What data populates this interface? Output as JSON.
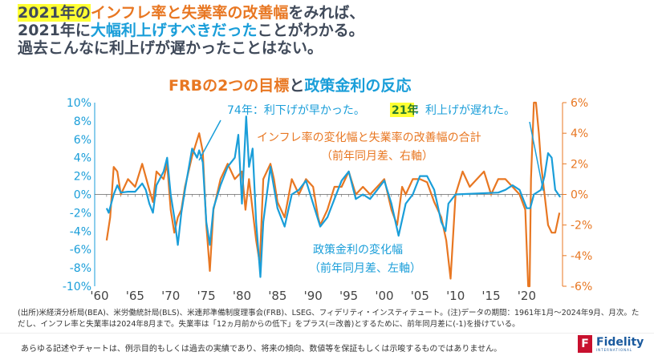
{
  "headline": {
    "l1_a": "2021年の",
    "l1_b": "インフレ率と失業率の改善幅",
    "l1_c": "をみれば、",
    "l2_a": "2021年に",
    "l2_b": "大幅利上げすべきだった",
    "l2_c": "ことがわかる。",
    "l3": "過去こんなに利上げが遅かったことはない。"
  },
  "chart_data": {
    "type": "line",
    "title_a": "FRBの2つの目標",
    "title_b": "と",
    "title_c": "政策金利の反応",
    "x_ticks": [
      "'60",
      "'65",
      "'70",
      "'75",
      "'80",
      "'85",
      "'90",
      "'95",
      "'00",
      "'05",
      "'10",
      "'15",
      "'20"
    ],
    "x_tick_years": [
      1960,
      1965,
      1970,
      1975,
      1980,
      1985,
      1990,
      1995,
      2000,
      2005,
      2010,
      2015,
      2020
    ],
    "xlim": [
      1960,
      2024.8
    ],
    "left_axis": {
      "ylim": [
        -10,
        10
      ],
      "ticks": [
        "10%",
        "8%",
        "6%",
        "4%",
        "2%",
        "0%",
        "-2%",
        "-4%",
        "-6%",
        "-8%",
        "-10%"
      ],
      "color": "#1a9ed9"
    },
    "right_axis": {
      "ylim": [
        -6,
        6
      ],
      "ticks": [
        "6%",
        "4%",
        "2%",
        "0%",
        "-2%",
        "-4%",
        "-6%"
      ],
      "color": "#e87722"
    },
    "annotations": {
      "a74": "74年：利下げが早かった。",
      "a21_y": "21年",
      "a21_t": "：利上げが遅れた。",
      "orange_l1": "インフレ率の変化幅と失業率の改善幅の合計",
      "orange_l2": "（前年同月差、右軸）",
      "blue_l1": "政策金利の変化幅",
      "blue_l2": "（前年同月差、左軸）"
    },
    "series": [
      {
        "name": "政策金利の変化幅（前年同月差、左軸）",
        "axis": "left",
        "color": "#1a9ed9",
        "points": [
          [
            1961,
            -1.5
          ],
          [
            1961.3,
            -2
          ],
          [
            1962,
            0
          ],
          [
            1962.5,
            1
          ],
          [
            1963,
            0.2
          ],
          [
            1964,
            0.3
          ],
          [
            1965,
            0.3
          ],
          [
            1966,
            1.2
          ],
          [
            1966.5,
            0.5
          ],
          [
            1967,
            -1
          ],
          [
            1967.5,
            -2
          ],
          [
            1968,
            1
          ],
          [
            1969,
            2.5
          ],
          [
            1969.5,
            4
          ],
          [
            1970,
            0
          ],
          [
            1970.5,
            -2.5
          ],
          [
            1971,
            -5.5
          ],
          [
            1971.5,
            -2
          ],
          [
            1972,
            0.5
          ],
          [
            1973,
            5
          ],
          [
            1973.7,
            4
          ],
          [
            1974,
            4.8
          ],
          [
            1974.5,
            3.5
          ],
          [
            1975,
            -3
          ],
          [
            1975.5,
            -5.5
          ],
          [
            1976,
            -1.5
          ],
          [
            1977,
            1
          ],
          [
            1978,
            3
          ],
          [
            1979,
            4
          ],
          [
            1979.5,
            6.5
          ],
          [
            1980,
            -1
          ],
          [
            1980.6,
            8.5
          ],
          [
            1981,
            3
          ],
          [
            1981.5,
            5
          ],
          [
            1982,
            -3
          ],
          [
            1982.6,
            -9
          ],
          [
            1983,
            -3
          ],
          [
            1984,
            3
          ],
          [
            1985,
            -1.5
          ],
          [
            1986,
            -3.5
          ],
          [
            1987,
            0
          ],
          [
            1988,
            0.5
          ],
          [
            1989,
            1.5
          ],
          [
            1990,
            -1
          ],
          [
            1991,
            -3.5
          ],
          [
            1992,
            -2.5
          ],
          [
            1993,
            -0.5
          ],
          [
            1994,
            1.5
          ],
          [
            1995,
            2.5
          ],
          [
            1996,
            -0.5
          ],
          [
            1997,
            0
          ],
          [
            1998,
            -0.5
          ],
          [
            1999,
            0.5
          ],
          [
            2000,
            1.5
          ],
          [
            2001,
            -1
          ],
          [
            2002,
            -4.5
          ],
          [
            2003,
            -1
          ],
          [
            2004,
            0
          ],
          [
            2005,
            2
          ],
          [
            2006,
            2
          ],
          [
            2007,
            0.5
          ],
          [
            2008,
            -3
          ],
          [
            2008.6,
            -4
          ],
          [
            2009,
            -1
          ],
          [
            2010,
            0
          ],
          [
            2016,
            0.2
          ],
          [
            2017,
            0.5
          ],
          [
            2018,
            1
          ],
          [
            2019,
            0.5
          ],
          [
            2020,
            -1.5
          ],
          [
            2020.5,
            -1.5
          ],
          [
            2021,
            0
          ],
          [
            2022,
            0.5
          ],
          [
            2022.5,
            2
          ],
          [
            2023,
            4.5
          ],
          [
            2023.5,
            4
          ],
          [
            2024,
            0.5
          ],
          [
            2024.7,
            -0.3
          ]
        ]
      },
      {
        "name": "インフレ率の変化幅と失業率の改善幅の合計（前年同月差、右軸）",
        "axis": "right",
        "color": "#e87722",
        "points": [
          [
            1961,
            -3
          ],
          [
            1961.5,
            -1.5
          ],
          [
            1962,
            1.8
          ],
          [
            1962.5,
            1.5
          ],
          [
            1963,
            0
          ],
          [
            1964,
            1
          ],
          [
            1965,
            0.5
          ],
          [
            1966,
            2
          ],
          [
            1967,
            0.3
          ],
          [
            1967.5,
            -0.5
          ],
          [
            1968,
            1.5
          ],
          [
            1969,
            1
          ],
          [
            1969.5,
            2
          ],
          [
            1970,
            -1
          ],
          [
            1970.5,
            -2.5
          ],
          [
            1971,
            -1.5
          ],
          [
            1971.5,
            -1
          ],
          [
            1972,
            0.5
          ],
          [
            1973,
            2.5
          ],
          [
            1974,
            4
          ],
          [
            1974.5,
            2.8
          ],
          [
            1975,
            -2
          ],
          [
            1975.5,
            -5
          ],
          [
            1976,
            -1
          ],
          [
            1977,
            1
          ],
          [
            1978,
            2
          ],
          [
            1979,
            1
          ],
          [
            1980,
            1.5
          ],
          [
            1980.5,
            -1
          ],
          [
            1981,
            1
          ],
          [
            1982,
            -3
          ],
          [
            1982.5,
            -4.5
          ],
          [
            1983,
            1
          ],
          [
            1984,
            2
          ],
          [
            1984.5,
            1
          ],
          [
            1985,
            -0.5
          ],
          [
            1986,
            -1.5
          ],
          [
            1987,
            1
          ],
          [
            1988,
            0
          ],
          [
            1989,
            1
          ],
          [
            1990,
            0.5
          ],
          [
            1990.7,
            -1.5
          ],
          [
            1991,
            -2
          ],
          [
            1992,
            -1
          ],
          [
            1993,
            0.5
          ],
          [
            1994,
            0.5
          ],
          [
            1995,
            1.5
          ],
          [
            1996,
            0
          ],
          [
            1997,
            0.5
          ],
          [
            1998,
            0
          ],
          [
            1999,
            0.5
          ],
          [
            2000,
            1
          ],
          [
            2001,
            -1
          ],
          [
            2001.8,
            -2
          ],
          [
            2002.5,
            0.5
          ],
          [
            2003,
            0
          ],
          [
            2004,
            1
          ],
          [
            2005,
            1
          ],
          [
            2006,
            0.8
          ],
          [
            2007,
            -0.5
          ],
          [
            2008,
            -1.5
          ],
          [
            2008.7,
            -3
          ],
          [
            2009.3,
            -5.5
          ],
          [
            2010,
            0
          ],
          [
            2011,
            1.5
          ],
          [
            2012,
            0.5
          ],
          [
            2013,
            1
          ],
          [
            2014,
            1.5
          ],
          [
            2015,
            0
          ],
          [
            2016,
            1
          ],
          [
            2017,
            1
          ],
          [
            2018,
            0.5
          ],
          [
            2019,
            0
          ],
          [
            2019.8,
            -1
          ],
          [
            2020.2,
            -6
          ],
          [
            2020.4,
            -6
          ],
          [
            2020.6,
            1
          ],
          [
            2021,
            6
          ],
          [
            2021.3,
            6
          ],
          [
            2021.7,
            4
          ],
          [
            2022,
            2
          ],
          [
            2022.5,
            0
          ],
          [
            2023,
            -2
          ],
          [
            2023.5,
            -2.5
          ],
          [
            2024,
            -2.5
          ],
          [
            2024.6,
            -1.2
          ]
        ]
      }
    ]
  },
  "source": "(出所)米経済分析局(BEA)、米労働統計局(BLS)、米連邦準備制度理事会(FRB)、LSEG、フィデリティ・インスティテュート。(注)データの期間：1961年1月～2024年9月、月次。ただし、インフレ率と失業率は2024年8月まで。失業率は「12ヵ月前からの低下」をプラス(＝改善)とするために、前年同月差に(-1)を掛けている。",
  "disclaimer": "あらゆる記述やチャートは、例示目的もしくは過去の実績であり、将来の傾向、数値等を保証もしくは示唆するものではありません。",
  "logo": {
    "mark": "F",
    "name": "Fidelity",
    "sub": "INTERNATIONAL"
  }
}
